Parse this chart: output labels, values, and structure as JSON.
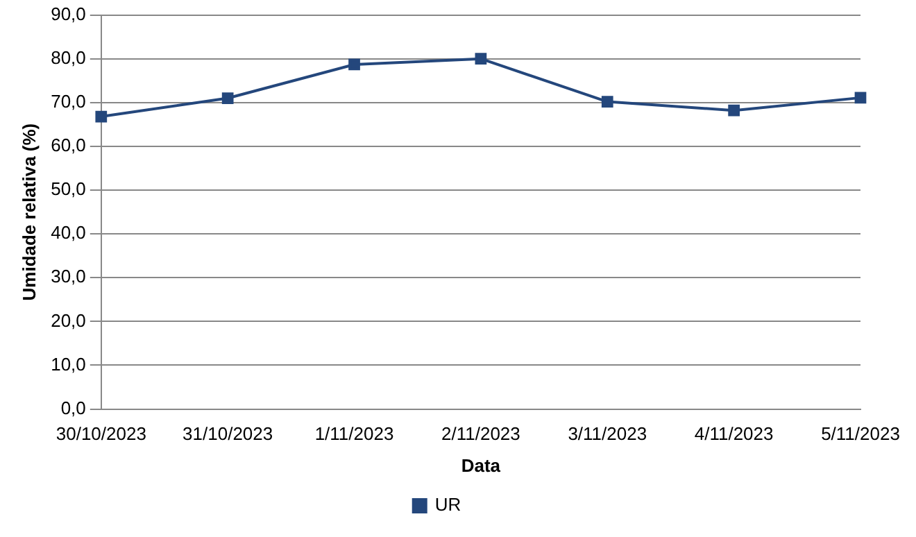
{
  "chart_data": {
    "type": "line",
    "xlabel": "Data",
    "ylabel": "Umidade relativa (%)",
    "categories": [
      "30/10/2023",
      "31/10/2023",
      "1/11/2023",
      "2/11/2023",
      "3/11/2023",
      "4/11/2023",
      "5/11/2023"
    ],
    "series": [
      {
        "name": "UR",
        "color": "#24477c",
        "values": [
          66.8,
          71.0,
          78.7,
          80.0,
          70.2,
          68.2,
          71.1
        ]
      }
    ],
    "ylim": [
      0,
      90
    ],
    "yticks": [
      {
        "value": 0,
        "label": "0,0"
      },
      {
        "value": 10,
        "label": "10,0"
      },
      {
        "value": 20,
        "label": "20,0"
      },
      {
        "value": 30,
        "label": "30,0"
      },
      {
        "value": 40,
        "label": "40,0"
      },
      {
        "value": 50,
        "label": "50,0"
      },
      {
        "value": 60,
        "label": "60,0"
      },
      {
        "value": 70,
        "label": "70,0"
      },
      {
        "value": 80,
        "label": "80,0"
      },
      {
        "value": 90,
        "label": "90,0"
      }
    ],
    "grid": "y",
    "legend": "bottom",
    "marker": "square",
    "line_style": "solid"
  }
}
